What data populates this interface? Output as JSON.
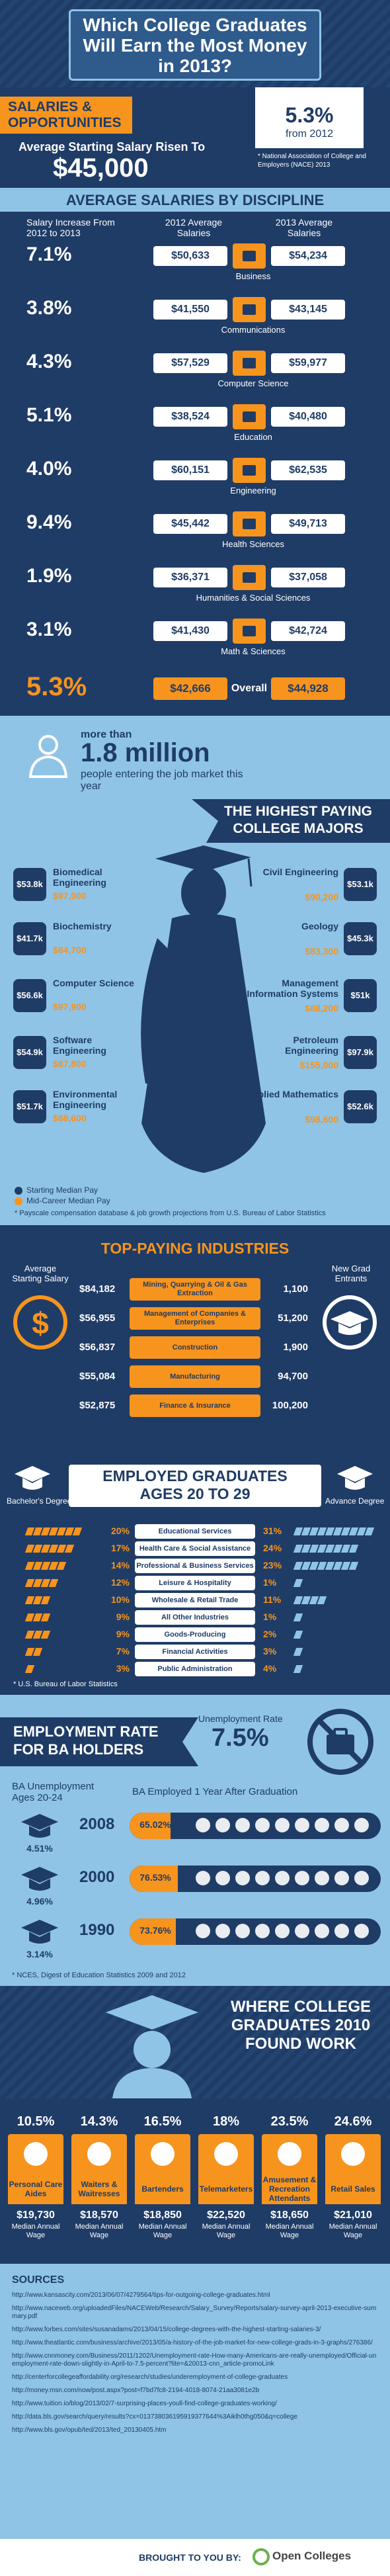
{
  "title": "Which College Graduates Will Earn the Most Money in 2013?",
  "colors": {
    "navy": "#1f3c66",
    "orange": "#f7941e",
    "light_blue": "#8fc4e6",
    "mid_blue": "#2e5a8c",
    "white": "#ffffff"
  },
  "salaries": {
    "heading": "SALARIES & OPPORTUNITIES",
    "subtitle": "Average Starting Salary Risen To",
    "amount": "$45,000",
    "pct": "5.3%",
    "pct_sub": "from 2012",
    "source": "* National Association of College and Employers (NACE) 2013"
  },
  "disc": {
    "heading": "AVERAGE SALARIES BY DISCIPLINE",
    "col_increase": "Salary Increase From 2012 to 2013",
    "col_2012": "2012 Average Salaries",
    "col_2013": "2013 Average Salaries",
    "rows": [
      {
        "pct": "7.1%",
        "s2012": "$50,633",
        "s2013": "$54,234",
        "label": "Business",
        "icon": "briefcase-icon"
      },
      {
        "pct": "3.8%",
        "s2012": "$41,550",
        "s2013": "$43,145",
        "label": "Communications",
        "icon": "wifi-icon"
      },
      {
        "pct": "4.3%",
        "s2012": "$57,529",
        "s2013": "$59,977",
        "label": "Computer Science",
        "icon": "laptop-icon"
      },
      {
        "pct": "5.1%",
        "s2012": "$38,524",
        "s2013": "$40,480",
        "label": "Education",
        "icon": "book-icon"
      },
      {
        "pct": "4.0%",
        "s2012": "$60,151",
        "s2013": "$62,535",
        "label": "Engineering",
        "icon": "gear-icon"
      },
      {
        "pct": "9.4%",
        "s2012": "$45,442",
        "s2013": "$49,713",
        "label": "Health Sciences",
        "icon": "medical-cross-icon"
      },
      {
        "pct": "1.9%",
        "s2012": "$36,371",
        "s2013": "$37,058",
        "label": "Humanities & Social Sciences",
        "icon": "gavel-icon"
      },
      {
        "pct": "3.1%",
        "s2012": "$41,430",
        "s2013": "$42,724",
        "label": "Math & Sciences",
        "icon": "flask-icon"
      }
    ],
    "overall": {
      "pct": "5.3%",
      "s2012": "$42,666",
      "label": "Overall",
      "s2013": "$44,928"
    }
  },
  "majors": {
    "more_than": "more than",
    "million": "1.8 million",
    "entering": "people entering the job market this year",
    "heading": "THE HIGHEST PAYING COLLEGE MAJORS",
    "left": [
      {
        "name": "Biomedical Engineering",
        "start": "$53.8k",
        "mid": "$97,000"
      },
      {
        "name": "Biochemistry",
        "start": "$41.7k",
        "mid": "$84,700"
      },
      {
        "name": "Computer Science",
        "start": "$56.6k",
        "mid": "$97,900"
      },
      {
        "name": "Software Engineering",
        "start": "$54.9k",
        "mid": "$87,800"
      },
      {
        "name": "Environmental Engineering",
        "start": "$51.7k",
        "mid": "$88,600"
      }
    ],
    "right": [
      {
        "name": "Civil Engineering",
        "start": "$53.1k",
        "mid": "$90,200"
      },
      {
        "name": "Geology",
        "start": "$45.3k",
        "mid": "$83,300"
      },
      {
        "name": "Management Information Systems",
        "start": "$51k",
        "mid": "$88,200"
      },
      {
        "name": "Petroleum Engineering",
        "start": "$97.9k",
        "mid": "$155,000"
      },
      {
        "name": "Applied Mathematics",
        "start": "$52.6k",
        "mid": "$98,600"
      }
    ],
    "legend_start": "Starting Median Pay",
    "legend_mid": "Mid-Career Median Pay",
    "source": "* Payscale compensation database & job growth projections from U.S. Bureau of Labor Statistics"
  },
  "industries": {
    "heading": "TOP-PAYING INDUSTRIES",
    "left_label": "Average Starting Salary",
    "right_label": "New Grad Entrants",
    "rows": [
      {
        "salary": "$84,182",
        "name": "Mining, Quarrying & Oil & Gas Extraction",
        "entrants": "1,100"
      },
      {
        "salary": "$56,955",
        "name": "Management of Companies & Enterprises",
        "entrants": "51,200"
      },
      {
        "salary": "$56,837",
        "name": "Construction",
        "entrants": "1,900"
      },
      {
        "salary": "$55,084",
        "name": "Manufacturing",
        "entrants": "94,700"
      },
      {
        "salary": "$52,875",
        "name": "Finance & Insurance",
        "entrants": "100,200"
      }
    ]
  },
  "employed": {
    "heading": "EMPLOYED GRADUATES AGES 20 TO 29",
    "bachelor": "Bachelor's Degree",
    "advance": "Advance Degree",
    "rows": [
      {
        "b": "20%",
        "name": "Educational Services",
        "a": "31%",
        "bv": 20,
        "av": 31
      },
      {
        "b": "17%",
        "name": "Health Care & Social Assistance",
        "a": "24%",
        "bv": 17,
        "av": 24
      },
      {
        "b": "14%",
        "name": "Professional & Business Services",
        "a": "23%",
        "bv": 14,
        "av": 23
      },
      {
        "b": "12%",
        "name": "Leisure & Hospitality",
        "a": "1%",
        "bv": 12,
        "av": 1
      },
      {
        "b": "10%",
        "name": "Wholesale & Retail Trade",
        "a": "11%",
        "bv": 10,
        "av": 11
      },
      {
        "b": "9%",
        "name": "All Other Industries",
        "a": "1%",
        "bv": 9,
        "av": 1
      },
      {
        "b": "9%",
        "name": "Goods-Producing",
        "a": "2%",
        "bv": 9,
        "av": 2
      },
      {
        "b": "7%",
        "name": "Financial Activities",
        "a": "3%",
        "bv": 7,
        "av": 3
      },
      {
        "b": "3%",
        "name": "Public Administration",
        "a": "4%",
        "bv": 3,
        "av": 4
      }
    ],
    "source": "* U.S. Bureau of Labor Statistics"
  },
  "employment": {
    "heading": "EMPLOYMENT RATE FOR BA HOLDERS",
    "unemp_label": "Unemployment Rate",
    "unemp_value": "7.5%",
    "ba_unemp": "BA Unemployment Ages 20-24",
    "ba_employed": "BA Employed 1 Year After Graduation",
    "years": [
      {
        "year": "2008",
        "unemp": "4.51%",
        "emp": "65.02%",
        "empv": 65.02
      },
      {
        "year": "2000",
        "unemp": "4.96%",
        "emp": "76.53%",
        "empv": 76.53
      },
      {
        "year": "1990",
        "unemp": "3.14%",
        "emp": "73.76%",
        "empv": 73.76
      }
    ],
    "source": "* NCES, Digest of Education Statistics 2009 and 2012"
  },
  "work": {
    "heading": "WHERE COLLEGE GRADUATES 2010 FOUND WORK",
    "jobs": [
      {
        "pct": "10.5%",
        "name": "Personal Care Aides",
        "wage": "$19,730",
        "icon": "heart-icon"
      },
      {
        "pct": "14.3%",
        "name": "Waiters & Waitresses",
        "wage": "$18,570",
        "icon": "tray-icon"
      },
      {
        "pct": "16.5%",
        "name": "Bartenders",
        "wage": "$18,850",
        "icon": "glass-icon"
      },
      {
        "pct": "18%",
        "name": "Telemarketers",
        "wage": "$22,520",
        "icon": "phone-icon"
      },
      {
        "pct": "23.5%",
        "name": "Amusement & Recreation Attendants",
        "wage": "$18,650",
        "icon": "ferris-wheel-icon"
      },
      {
        "pct": "24.6%",
        "name": "Retail Sales",
        "wage": "$21,010",
        "icon": "shopping-bag-icon"
      }
    ],
    "wage_label": "Median Annual Wage"
  },
  "sources": {
    "heading": "SOURCES",
    "list": [
      "http://www.kansascity.com/2013/06/07/4279564/tips-for-outgoing-college-graduates.html",
      "http://www.naceweb.org/uploadedFiles/NACEWeb/Research/Salary_Survey/Reports/salary-survey-april-2013-executive-summary.pdf",
      "http://www.forbes.com/sites/susanadams/2013/04/15/college-degrees-with-the-highest-starting-salaries-3/",
      "http://www.theatlantic.com/business/archive/2013/05/a-history-of-the-job-market-for-new-college-grads-in-3-graphs/276386/",
      "http://www.cnnmoney.com/Business/2011/1202/Unemployment-rate-How-many-Americans-are-really-unemployed/Official-unemployment-rate-down-slightly-in-April-to-7.5-percent?lite=&20013-cnn_article-promoLink",
      "http://centerforcollegeaffordability.org/research/studies/underemployment-of-college-graduates",
      "http://money.msn.com/now/post.aspx?post=f7bd7fc8-2194-4018-8074-21aa3081e2b",
      "http://www.tuition.io/blog/2013/02/7-surprising-places-youll-find-college-graduates-working/",
      "http://data.bls.gov/search/query/results?cx=013738036195919377644%3Aiklh0thg050&q=college",
      "http://www.bls.gov/opub/ted/2013/ted_20130405.htm"
    ]
  },
  "footer": {
    "brought": "BROUGHT TO YOU BY:",
    "brand": "Open Colleges"
  }
}
